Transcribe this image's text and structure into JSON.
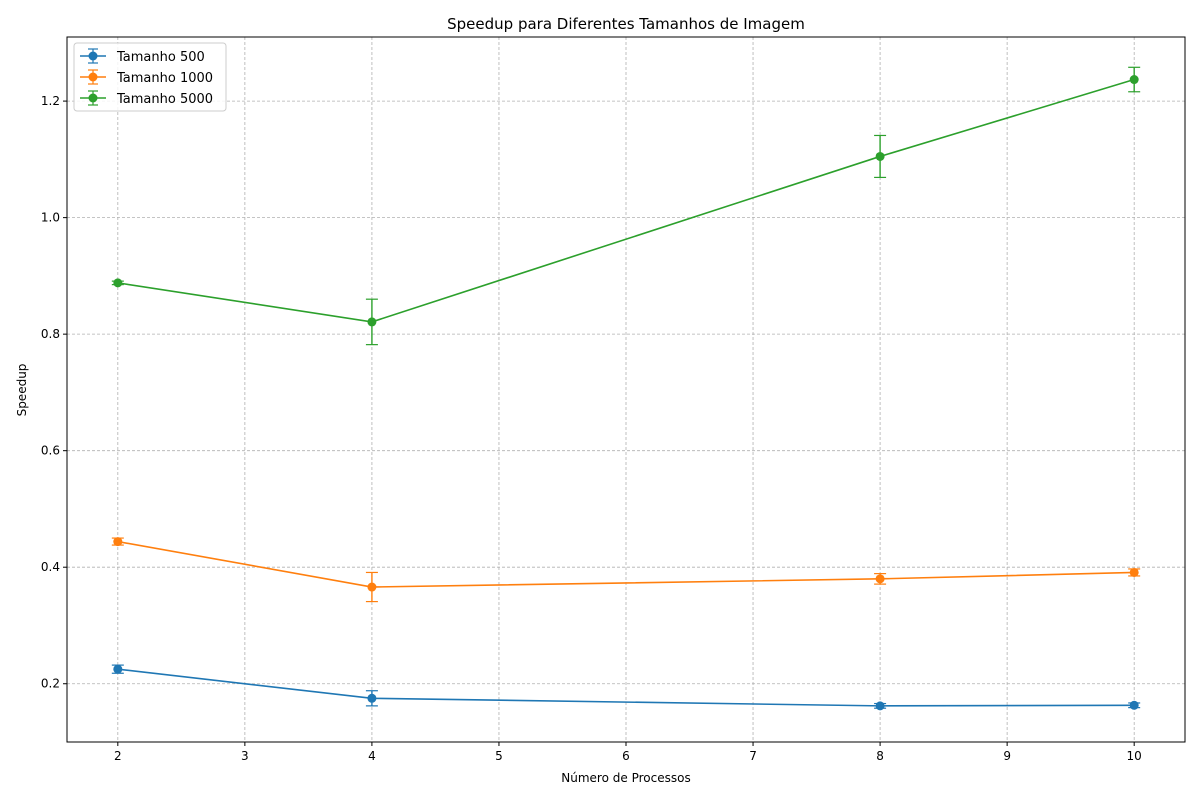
{
  "chart_data": {
    "type": "line",
    "title": "Speedup para Diferentes Tamanhos de Imagem",
    "xlabel": "Número de Processos",
    "ylabel": "Speedup",
    "xlim": [
      1.6,
      10.4
    ],
    "ylim": [
      0.1,
      1.31
    ],
    "xticks": [
      2,
      3,
      4,
      5,
      6,
      7,
      8,
      9,
      10
    ],
    "yticks": [
      0.2,
      0.4,
      0.6,
      0.8,
      1.0,
      1.2
    ],
    "ytick_labels": [
      "0.2",
      "0.4",
      "0.6",
      "0.8",
      "1.0",
      "1.2"
    ],
    "grid": true,
    "legend_position": "top-left",
    "x": [
      2,
      4,
      8,
      10
    ],
    "series": [
      {
        "name": "Tamanho 500",
        "color": "#1f77b4",
        "values": [
          0.225,
          0.175,
          0.162,
          0.163
        ],
        "errors": [
          0.007,
          0.013,
          0.004,
          0.004
        ]
      },
      {
        "name": "Tamanho 1000",
        "color": "#ff7f0e",
        "values": [
          0.444,
          0.366,
          0.38,
          0.391
        ],
        "errors": [
          0.006,
          0.025,
          0.009,
          0.006
        ]
      },
      {
        "name": "Tamanho 5000",
        "color": "#2ca02c",
        "values": [
          0.888,
          0.821,
          1.105,
          1.237
        ],
        "errors": [
          0.003,
          0.039,
          0.036,
          0.021
        ]
      }
    ]
  }
}
